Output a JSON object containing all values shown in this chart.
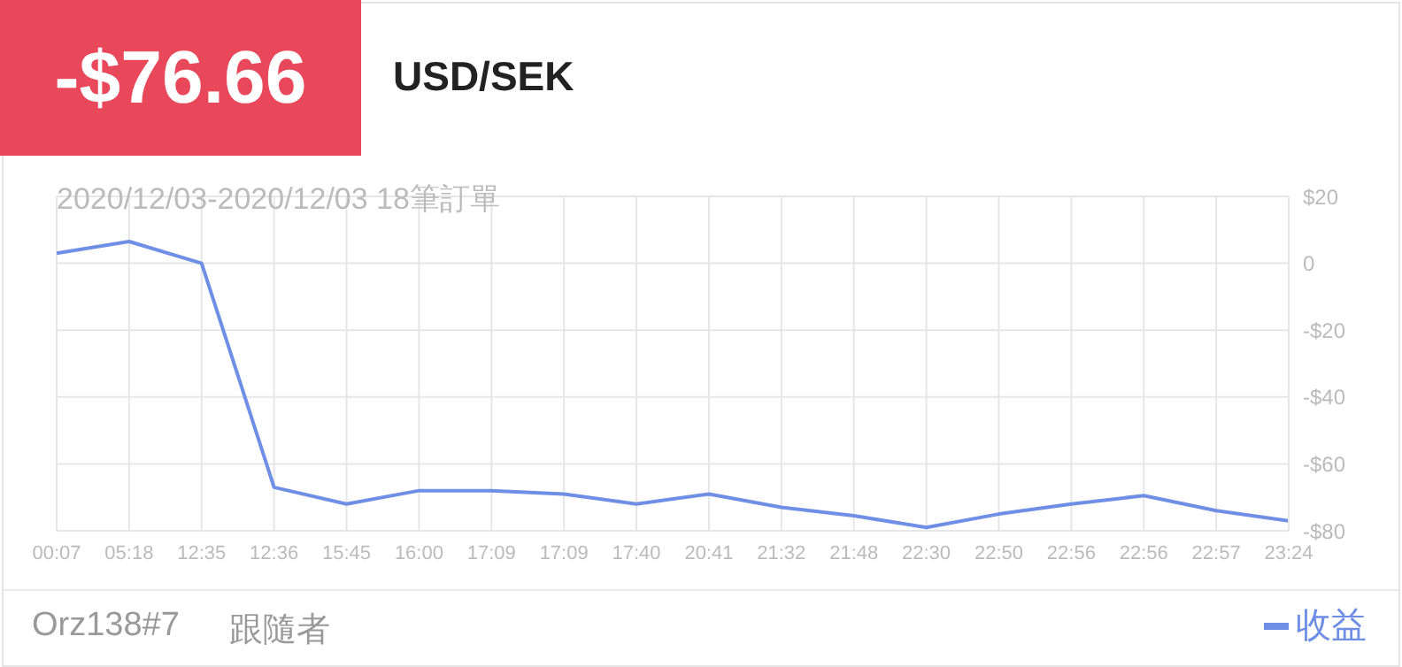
{
  "chart_data": {
    "type": "line",
    "title": "USD/SEK",
    "subtitle": "2020/12/03-2020/12/03 18筆訂單",
    "annotations": [
      "-$76.66",
      "Orz138#7",
      "跟隨者"
    ],
    "categories": [
      "00:07",
      "05:18",
      "12:35",
      "12:36",
      "15:45",
      "16:00",
      "17:09",
      "17:09",
      "17:40",
      "20:41",
      "21:32",
      "21:48",
      "22:30",
      "22:50",
      "22:56",
      "22:56",
      "22:57",
      "23:24"
    ],
    "series": [
      {
        "name": "收益",
        "color": "#6f8fe6",
        "values": [
          3,
          6.5,
          0,
          -67,
          -72,
          -68,
          -68,
          -69,
          -72,
          -69,
          -73,
          -75.5,
          -79,
          -75,
          -72,
          -69.5,
          -74,
          -77
        ]
      }
    ],
    "ylim": [
      -80,
      20
    ],
    "yticks": [
      {
        "value": 20,
        "label": "$20"
      },
      0,
      {
        "value": -20,
        "label": "-$20"
      },
      {
        "value": -40,
        "label": "-$40"
      },
      {
        "value": -60,
        "label": "-$60"
      },
      {
        "value": -80,
        "label": "-$80"
      }
    ],
    "grid": true,
    "legend": "bottom right",
    "marker": "none",
    "line_style": "solid"
  }
}
